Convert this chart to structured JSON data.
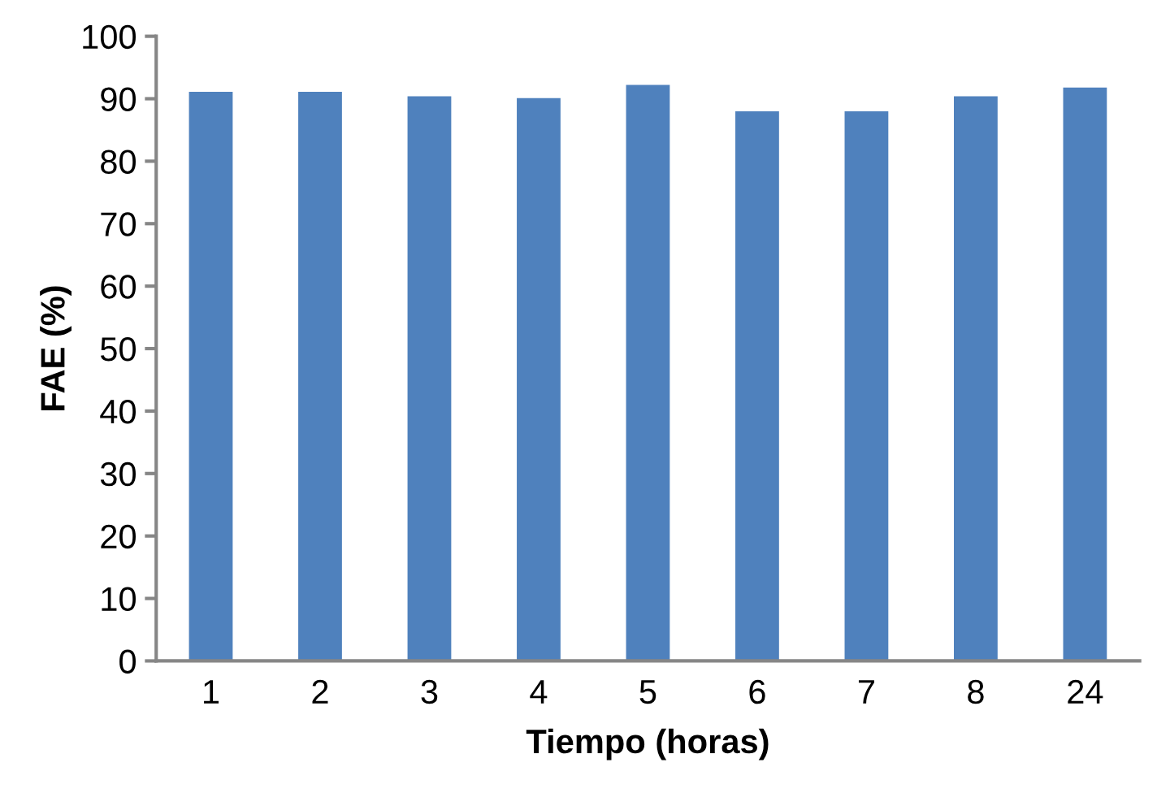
{
  "chart_data": {
    "type": "bar",
    "xlabel": "Tiempo (horas)",
    "ylabel": "FAE (%)",
    "categories": [
      "1",
      "2",
      "3",
      "4",
      "5",
      "6",
      "7",
      "8",
      "24"
    ],
    "values": [
      91.1,
      91.1,
      90.4,
      90.1,
      92.2,
      88.0,
      88.0,
      90.4,
      91.8
    ],
    "color": "#4f81bd",
    "ylim": [
      0,
      100
    ],
    "yticks": [
      0,
      10,
      20,
      30,
      40,
      50,
      60,
      70,
      80,
      90,
      100
    ],
    "grid": false,
    "legend": false
  }
}
